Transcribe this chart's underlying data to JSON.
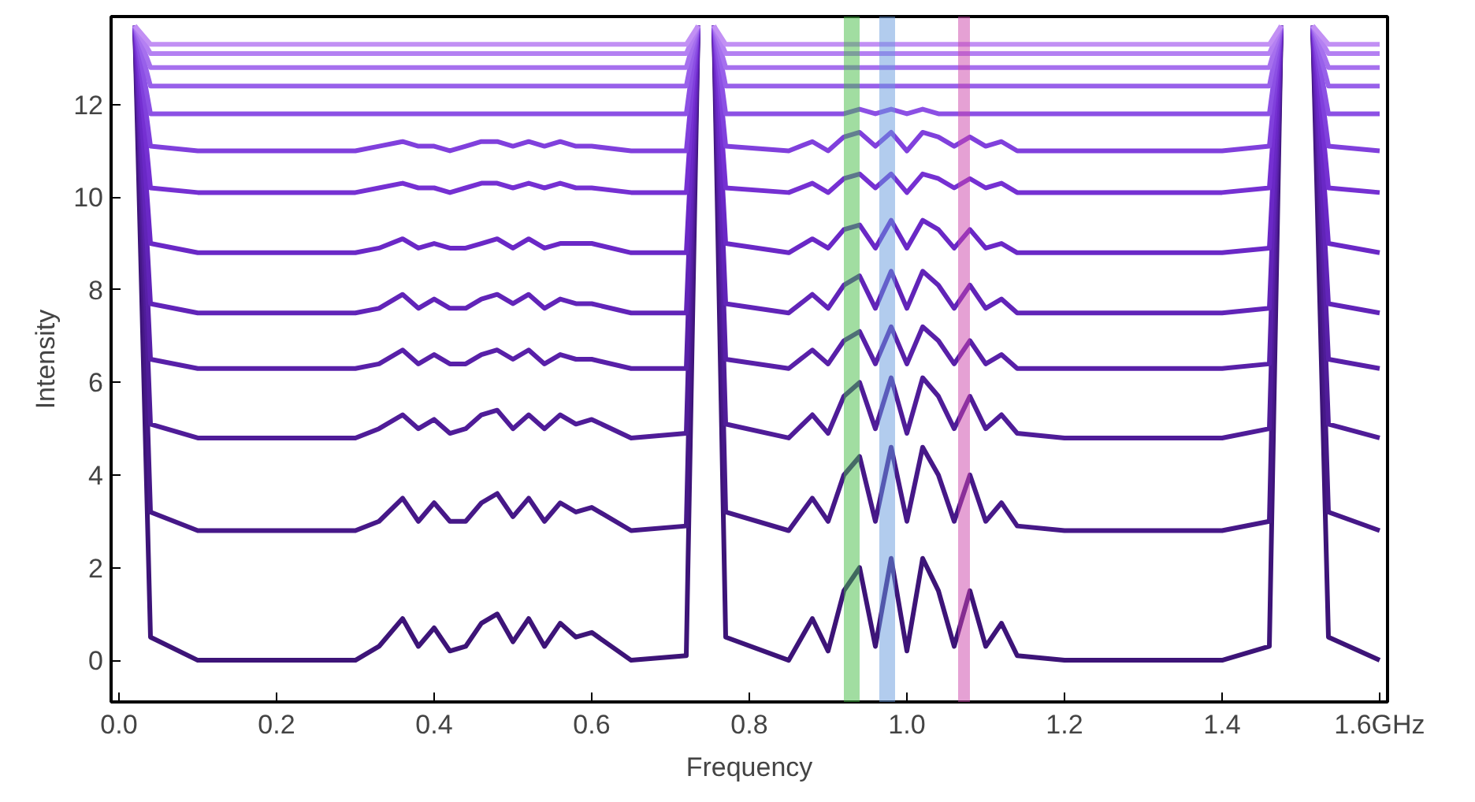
{
  "chart_data": {
    "type": "line",
    "xlabel": "Frequency",
    "ylabel": "Intensity",
    "x": [
      0.02,
      0.04,
      0.1,
      0.2,
      0.3,
      0.33,
      0.36,
      0.38,
      0.4,
      0.42,
      0.44,
      0.46,
      0.48,
      0.5,
      0.52,
      0.54,
      0.56,
      0.58,
      0.6,
      0.65,
      0.72,
      0.735,
      0.745,
      0.755,
      0.77,
      0.85,
      0.88,
      0.9,
      0.92,
      0.94,
      0.96,
      0.98,
      1.0,
      1.02,
      1.04,
      1.06,
      1.08,
      1.1,
      1.12,
      1.14,
      1.2,
      1.3,
      1.4,
      1.46,
      1.475,
      1.495,
      1.515,
      1.535,
      1.6
    ],
    "xlim": [
      -0.01,
      1.61
    ],
    "ylim": [
      -0.9,
      13.9
    ],
    "xticks": [
      {
        "value": 0,
        "label": "0.0"
      },
      0.2,
      0.4,
      0.6,
      0.8,
      {
        "value": 1,
        "label": "1.0"
      },
      1.2,
      1.4,
      {
        "value": 1.6,
        "label": "1.6GHz"
      }
    ],
    "yticks": [
      0,
      2,
      4,
      6,
      8,
      10,
      12
    ],
    "grid": false,
    "bands": [
      {
        "axis": "x",
        "from": 0.92,
        "to": 0.94,
        "color": "#44bb44"
      },
      {
        "axis": "x",
        "from": 0.965,
        "to": 0.985,
        "color": "#6699dd"
      },
      {
        "axis": "x",
        "from": 1.065,
        "to": 1.08,
        "color": "#cc44aa"
      }
    ],
    "series": [
      {
        "color": "#3d1478",
        "values": [
          13.7,
          0.5,
          0,
          0,
          0,
          0.3,
          0.9,
          0.3,
          0.7,
          0.2,
          0.3,
          0.8,
          1.0,
          0.4,
          0.9,
          0.3,
          0.8,
          0.5,
          0.6,
          0,
          0.1,
          13.7,
          null,
          13.7,
          0.5,
          0,
          0.9,
          0.2,
          1.5,
          2.0,
          0.3,
          2.2,
          0.2,
          2.2,
          1.5,
          0.3,
          1.5,
          0.3,
          0.8,
          0.1,
          0,
          0,
          0,
          0.3,
          13.7,
          null,
          13.7,
          0.5,
          0
        ]
      },
      {
        "color": "#461888",
        "values": [
          13.7,
          3.2,
          2.8,
          2.8,
          2.8,
          3.0,
          3.5,
          3.0,
          3.4,
          3.0,
          3.0,
          3.4,
          3.6,
          3.1,
          3.5,
          3.0,
          3.4,
          3.2,
          3.3,
          2.8,
          2.9,
          13.7,
          null,
          13.7,
          3.2,
          2.8,
          3.5,
          3.0,
          4.0,
          4.4,
          3.0,
          4.6,
          3.0,
          4.6,
          4.0,
          3.0,
          4.0,
          3.0,
          3.4,
          2.9,
          2.8,
          2.8,
          2.8,
          3.0,
          13.7,
          null,
          13.7,
          3.2,
          2.8
        ]
      },
      {
        "color": "#4f1c98",
        "values": [
          13.7,
          5.1,
          4.8,
          4.8,
          4.8,
          5.0,
          5.3,
          5.0,
          5.2,
          4.9,
          5.0,
          5.3,
          5.4,
          5.0,
          5.3,
          5.0,
          5.3,
          5.1,
          5.2,
          4.8,
          4.9,
          13.7,
          null,
          13.7,
          5.1,
          4.8,
          5.3,
          4.9,
          5.7,
          6.0,
          5.0,
          6.1,
          4.9,
          6.1,
          5.7,
          5.0,
          5.7,
          5.0,
          5.3,
          4.9,
          4.8,
          4.8,
          4.8,
          5.0,
          13.7,
          null,
          13.7,
          5.1,
          4.8
        ]
      },
      {
        "color": "#5820a8",
        "values": [
          13.7,
          6.5,
          6.3,
          6.3,
          6.3,
          6.4,
          6.7,
          6.4,
          6.6,
          6.4,
          6.4,
          6.6,
          6.7,
          6.5,
          6.7,
          6.4,
          6.6,
          6.5,
          6.5,
          6.3,
          6.3,
          13.7,
          null,
          13.7,
          6.5,
          6.3,
          6.7,
          6.4,
          6.9,
          7.1,
          6.4,
          7.2,
          6.4,
          7.2,
          6.9,
          6.4,
          6.9,
          6.4,
          6.6,
          6.3,
          6.3,
          6.3,
          6.3,
          6.4,
          13.7,
          null,
          13.7,
          6.5,
          6.3
        ]
      },
      {
        "color": "#6124b8",
        "values": [
          13.7,
          7.7,
          7.5,
          7.5,
          7.5,
          7.6,
          7.9,
          7.6,
          7.8,
          7.6,
          7.6,
          7.8,
          7.9,
          7.7,
          7.9,
          7.6,
          7.8,
          7.7,
          7.7,
          7.5,
          7.5,
          13.7,
          null,
          13.7,
          7.7,
          7.5,
          7.9,
          7.6,
          8.1,
          8.3,
          7.6,
          8.4,
          7.6,
          8.4,
          8.1,
          7.6,
          8.1,
          7.6,
          7.8,
          7.5,
          7.5,
          7.5,
          7.5,
          7.6,
          13.7,
          null,
          13.7,
          7.7,
          7.5
        ]
      },
      {
        "color": "#6a28c6",
        "values": [
          13.7,
          9.0,
          8.8,
          8.8,
          8.8,
          8.9,
          9.1,
          8.9,
          9.0,
          8.9,
          8.9,
          9.0,
          9.1,
          8.9,
          9.1,
          8.9,
          9.0,
          9.0,
          9.0,
          8.8,
          8.8,
          13.7,
          null,
          13.7,
          9.0,
          8.8,
          9.1,
          8.9,
          9.3,
          9.4,
          8.9,
          9.5,
          8.9,
          9.5,
          9.3,
          8.9,
          9.3,
          8.9,
          9.0,
          8.8,
          8.8,
          8.8,
          8.8,
          8.9,
          13.7,
          null,
          13.7,
          9.0,
          8.8
        ]
      },
      {
        "color": "#7530d2",
        "values": [
          13.7,
          10.2,
          10.1,
          10.1,
          10.1,
          10.2,
          10.3,
          10.2,
          10.2,
          10.1,
          10.2,
          10.3,
          10.3,
          10.2,
          10.3,
          10.2,
          10.3,
          10.2,
          10.2,
          10.1,
          10.1,
          13.7,
          null,
          13.7,
          10.2,
          10.1,
          10.3,
          10.1,
          10.4,
          10.5,
          10.2,
          10.5,
          10.1,
          10.5,
          10.4,
          10.2,
          10.4,
          10.2,
          10.3,
          10.1,
          10.1,
          10.1,
          10.1,
          10.2,
          13.7,
          null,
          13.7,
          10.2,
          10.1
        ]
      },
      {
        "color": "#8040dc",
        "values": [
          13.7,
          11.1,
          11.0,
          11.0,
          11.0,
          11.1,
          11.2,
          11.1,
          11.1,
          11.0,
          11.1,
          11.2,
          11.2,
          11.1,
          11.2,
          11.1,
          11.2,
          11.1,
          11.1,
          11.0,
          11.0,
          13.7,
          null,
          13.7,
          11.1,
          11.0,
          11.2,
          11.0,
          11.3,
          11.4,
          11.1,
          11.4,
          11.0,
          11.4,
          11.3,
          11.1,
          11.3,
          11.1,
          11.2,
          11.0,
          11.0,
          11.0,
          11.0,
          11.1,
          13.7,
          null,
          13.7,
          11.1,
          11.0
        ]
      },
      {
        "color": "#8c50e4",
        "values": [
          13.7,
          11.8,
          11.8,
          11.8,
          11.8,
          11.8,
          11.8,
          11.8,
          11.8,
          11.8,
          11.8,
          11.8,
          11.8,
          11.8,
          11.8,
          11.8,
          11.8,
          11.8,
          11.8,
          11.8,
          11.8,
          13.7,
          null,
          13.7,
          11.8,
          11.8,
          11.8,
          11.8,
          11.8,
          11.9,
          11.8,
          11.9,
          11.8,
          11.9,
          11.8,
          11.8,
          11.8,
          11.8,
          11.8,
          11.8,
          11.8,
          11.8,
          11.8,
          11.8,
          13.7,
          null,
          13.7,
          11.8,
          11.8
        ]
      },
      {
        "color": "#9860ea",
        "values": [
          13.7,
          12.4,
          12.4,
          12.4,
          12.4,
          12.4,
          12.4,
          12.4,
          12.4,
          12.4,
          12.4,
          12.4,
          12.4,
          12.4,
          12.4,
          12.4,
          12.4,
          12.4,
          12.4,
          12.4,
          12.4,
          13.7,
          null,
          13.7,
          12.4,
          12.4,
          12.4,
          12.4,
          12.4,
          12.4,
          12.4,
          12.4,
          12.4,
          12.4,
          12.4,
          12.4,
          12.4,
          12.4,
          12.4,
          12.4,
          12.4,
          12.4,
          12.4,
          12.4,
          13.7,
          null,
          13.7,
          12.4,
          12.4
        ]
      },
      {
        "color": "#a670ee",
        "values": [
          13.7,
          12.8,
          12.8,
          12.8,
          12.8,
          12.8,
          12.8,
          12.8,
          12.8,
          12.8,
          12.8,
          12.8,
          12.8,
          12.8,
          12.8,
          12.8,
          12.8,
          12.8,
          12.8,
          12.8,
          12.8,
          13.7,
          null,
          13.7,
          12.8,
          12.8,
          12.8,
          12.8,
          12.8,
          12.8,
          12.8,
          12.8,
          12.8,
          12.8,
          12.8,
          12.8,
          12.8,
          12.8,
          12.8,
          12.8,
          12.8,
          12.8,
          12.8,
          12.8,
          13.7,
          null,
          13.7,
          12.8,
          12.8
        ]
      },
      {
        "color": "#b480f2",
        "values": [
          13.7,
          13.1,
          13.1,
          13.1,
          13.1,
          13.1,
          13.1,
          13.1,
          13.1,
          13.1,
          13.1,
          13.1,
          13.1,
          13.1,
          13.1,
          13.1,
          13.1,
          13.1,
          13.1,
          13.1,
          13.1,
          13.7,
          null,
          13.7,
          13.1,
          13.1,
          13.1,
          13.1,
          13.1,
          13.1,
          13.1,
          13.1,
          13.1,
          13.1,
          13.1,
          13.1,
          13.1,
          13.1,
          13.1,
          13.1,
          13.1,
          13.1,
          13.1,
          13.1,
          13.7,
          null,
          13.7,
          13.1,
          13.1
        ]
      },
      {
        "color": "#c290f4",
        "values": [
          13.7,
          13.3,
          13.3,
          13.3,
          13.3,
          13.3,
          13.3,
          13.3,
          13.3,
          13.3,
          13.3,
          13.3,
          13.3,
          13.3,
          13.3,
          13.3,
          13.3,
          13.3,
          13.3,
          13.3,
          13.3,
          13.7,
          null,
          13.7,
          13.3,
          13.3,
          13.3,
          13.3,
          13.3,
          13.3,
          13.3,
          13.3,
          13.3,
          13.3,
          13.3,
          13.3,
          13.3,
          13.3,
          13.3,
          13.3,
          13.3,
          13.3,
          13.3,
          13.3,
          13.7,
          null,
          13.7,
          13.3,
          13.3
        ]
      }
    ]
  }
}
